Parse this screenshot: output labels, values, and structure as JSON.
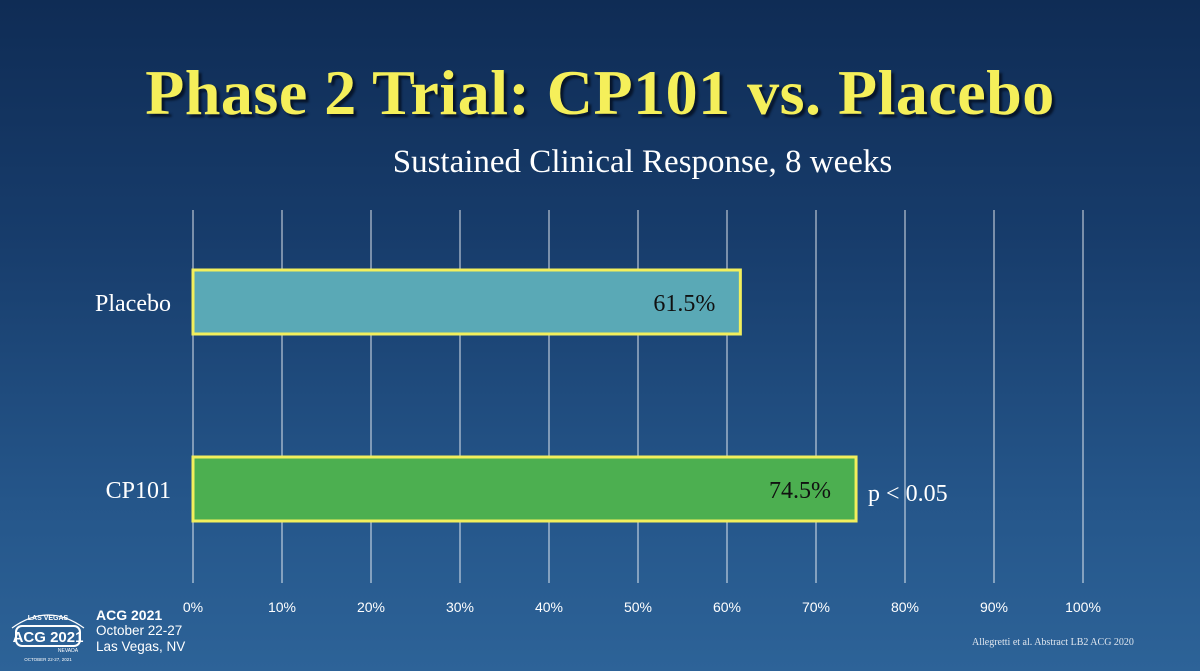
{
  "slide": {
    "title": "Phase 2 Trial: CP101 vs. Placebo",
    "citation": "Allegretti et al. Abstract LB2 ACG 2020"
  },
  "event": {
    "logo_text": "ACG 2021",
    "logo_top": "LAS VEGAS",
    "logo_state": "NEVADA",
    "logo_small": "OCTOBER 22-27, 2021",
    "name": "ACG 2021",
    "dates": "October 22-27",
    "location": "Las Vegas, NV"
  },
  "colors": {
    "placebo": "#5aa9b6",
    "cp101": "#4caf50",
    "bar_border": "#f2ef5c",
    "title": "#f5ef5a"
  },
  "chart_data": {
    "type": "bar",
    "orientation": "horizontal",
    "title": "Sustained Clinical Response, 8 weeks",
    "categories": [
      "Placebo",
      "CP101"
    ],
    "values": [
      61.5,
      74.5
    ],
    "value_labels": [
      "61.5%",
      "74.5%"
    ],
    "xlim": [
      0,
      100
    ],
    "xticks": [
      0,
      10,
      20,
      30,
      40,
      50,
      60,
      70,
      80,
      90,
      100
    ],
    "xtick_labels": [
      "0%",
      "10%",
      "20%",
      "30%",
      "40%",
      "50%",
      "60%",
      "70%",
      "80%",
      "90%",
      "100%"
    ],
    "annotations": [
      {
        "category": "CP101",
        "text": "p < 0.05"
      }
    ],
    "grid": true
  }
}
